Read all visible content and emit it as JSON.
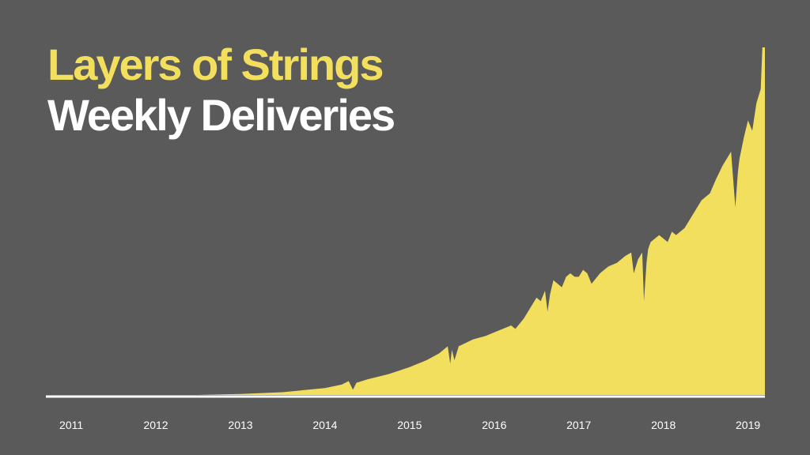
{
  "slide": {
    "title": "Layers of Strings",
    "subtitle": "Weekly Deliveries"
  },
  "colors": {
    "background": "#5a5a5a",
    "accent": "#f2df5d",
    "axis": "#ffffff",
    "text": "#ffffff"
  },
  "chart_data": {
    "type": "area",
    "title": "Layers of Strings",
    "subtitle": "Weekly Deliveries",
    "xlabel": "",
    "ylabel": "",
    "grid": false,
    "legend": "none",
    "xlim": [
      2010.7,
      2019.2
    ],
    "ylim": [
      0,
      100
    ],
    "x_ticks": [
      "2011",
      "2012",
      "2013",
      "2014",
      "2015",
      "2016",
      "2017",
      "2018",
      "2019"
    ],
    "series": [
      {
        "name": "Weekly Deliveries",
        "x": [
          2010.7,
          2012.5,
          2013.0,
          2013.5,
          2014.0,
          2014.2,
          2014.28,
          2014.33,
          2014.37,
          2014.5,
          2014.75,
          2015.0,
          2015.2,
          2015.35,
          2015.45,
          2015.48,
          2015.5,
          2015.53,
          2015.58,
          2015.75,
          2015.9,
          2016.0,
          2016.1,
          2016.2,
          2016.25,
          2016.35,
          2016.45,
          2016.5,
          2016.55,
          2016.6,
          2016.63,
          2016.66,
          2016.7,
          2016.75,
          2016.8,
          2016.85,
          2016.9,
          2016.95,
          2017.0,
          2017.05,
          2017.1,
          2017.15,
          2017.25,
          2017.35,
          2017.45,
          2017.55,
          2017.62,
          2017.65,
          2017.7,
          2017.75,
          2017.77,
          2017.8,
          2017.82,
          2017.85,
          2017.95,
          2018.05,
          2018.1,
          2018.15,
          2018.25,
          2018.35,
          2018.45,
          2018.55,
          2018.62,
          2018.7,
          2018.8,
          2018.85,
          2018.88,
          2018.9,
          2018.95,
          2019.0,
          2019.05,
          2019.1,
          2019.15,
          2019.17,
          2019.2
        ],
        "values": [
          0,
          0,
          0.3,
          0.8,
          2,
          3,
          4,
          1.5,
          3.5,
          4.5,
          6,
          8,
          10,
          12,
          14,
          9,
          13,
          10,
          14,
          16,
          17,
          18,
          19,
          20,
          19,
          22,
          26,
          28,
          27,
          30,
          24,
          29,
          33,
          32,
          31,
          34,
          35,
          34,
          34,
          36,
          35,
          32,
          35,
          37,
          38,
          40,
          41,
          35,
          39,
          41,
          27,
          38,
          42,
          44,
          46,
          44,
          47,
          46,
          48,
          52,
          56,
          58,
          62,
          66,
          70,
          54,
          64,
          68,
          74,
          79,
          76,
          84,
          88,
          100,
          100
        ]
      }
    ]
  }
}
